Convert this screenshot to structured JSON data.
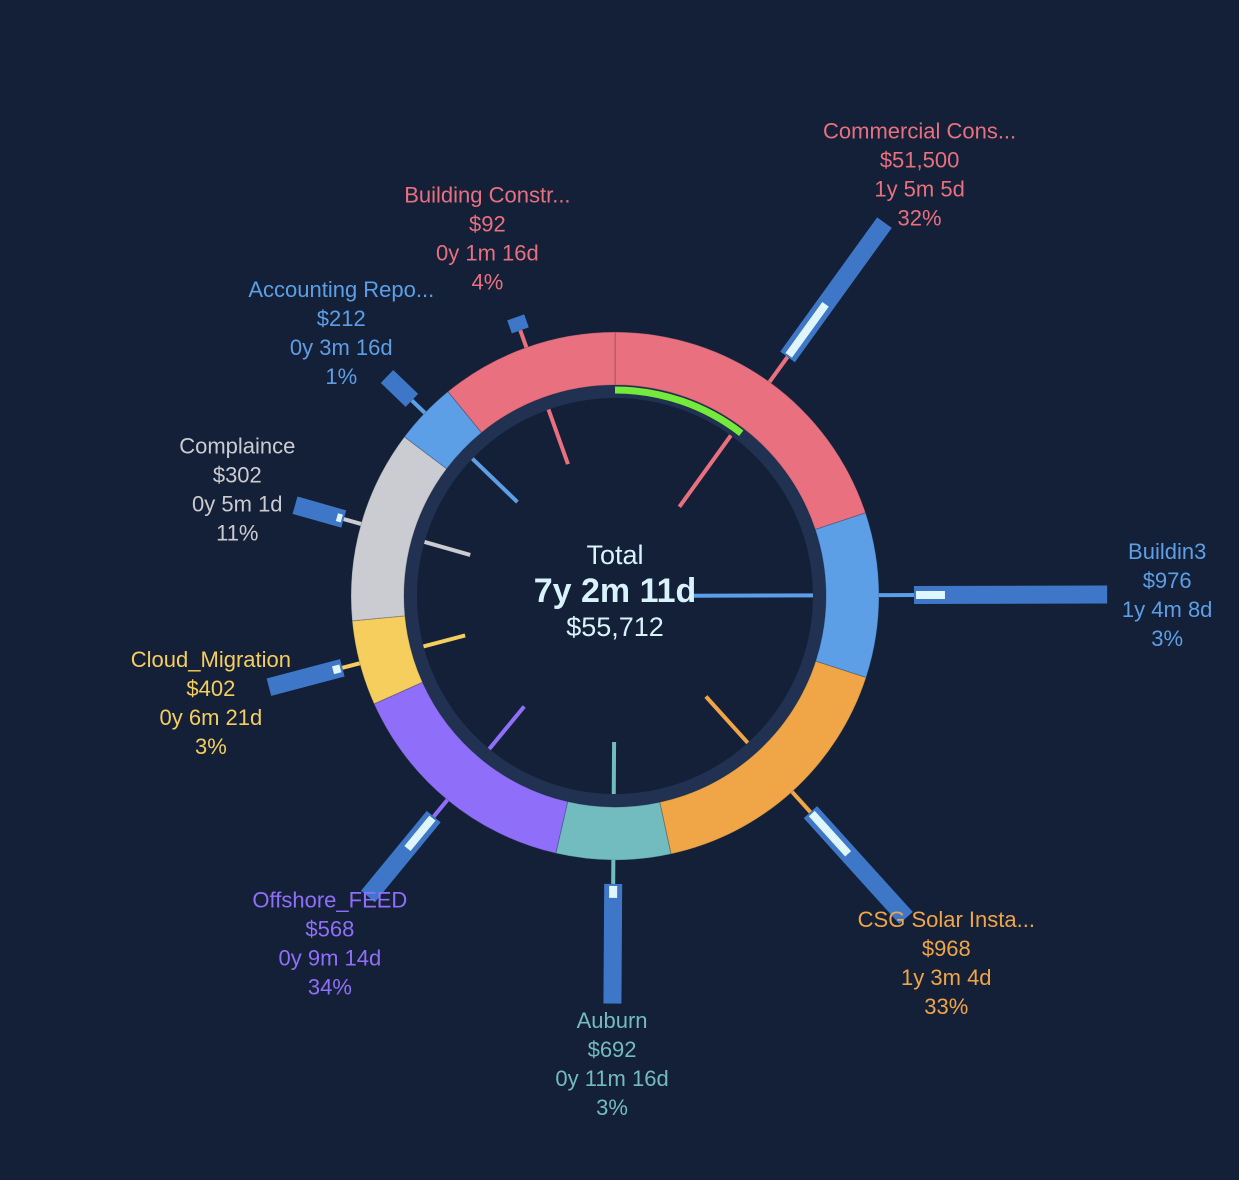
{
  "chart_data": {
    "type": "pie",
    "center": {
      "title": "Total",
      "duration": "7y 2m 11d",
      "cost": "$55,712"
    },
    "slices": [
      {
        "name": "Commercial Cons...",
        "cost": "$51,500",
        "duration": "1y 5m 5d",
        "percent": "32%",
        "share": 0.199,
        "outer_bar": 0.72,
        "outer_marker": 0.38,
        "inner_bar": 0.62,
        "color": "#e8707f"
      },
      {
        "name": "Buildin3",
        "cost": "$976",
        "duration": "1y 4m 8d",
        "percent": "3%",
        "share": 0.101,
        "outer_bar": 0.84,
        "outer_marker": 0.15,
        "inner_bar": 0.85,
        "color": "#5c9fe6"
      },
      {
        "name": "CSG Solar Insta...",
        "cost": "$968",
        "duration": "1y 3m 4d",
        "percent": "33%",
        "share": 0.166,
        "outer_bar": 0.62,
        "outer_marker": 0.38,
        "inner_bar": 0.45,
        "color": "#f0a546"
      },
      {
        "name": "Auburn",
        "cost": "$692",
        "duration": "0y 11m 16d",
        "percent": "3%",
        "share": 0.07,
        "outer_bar": 0.52,
        "outer_marker": 0.1,
        "inner_bar": 0.38,
        "color": "#72bcc0"
      },
      {
        "name": "Offshore_FEED",
        "cost": "$568",
        "duration": "0y 9m 14d",
        "percent": "34%",
        "share": 0.147,
        "outer_bar": 0.45,
        "outer_marker": 0.38,
        "inner_bar": 0.4,
        "color": "#8f6ffa"
      },
      {
        "name": "Cloud_Migration",
        "cost": "$402",
        "duration": "0y 6m 21d",
        "percent": "3%",
        "share": 0.052,
        "outer_bar": 0.33,
        "outer_marker": 0.1,
        "inner_bar": 0.32,
        "color": "#f5ce5e"
      },
      {
        "name": "Complaince",
        "cost": "$302",
        "duration": "0y 5m 1d",
        "percent": "11%",
        "share": 0.118,
        "outer_bar": 0.22,
        "outer_marker": 0.1,
        "inner_bar": 0.35,
        "color": "#cbccd1"
      },
      {
        "name": "Accounting Repo...",
        "cost": "$212",
        "duration": "0y 3m 16d",
        "percent": "1%",
        "share": 0.038,
        "outer_bar": 0.15,
        "outer_marker": 0,
        "inner_bar": 0.45,
        "color": "#5c9fe6"
      },
      {
        "name": "Building Constr...",
        "cost": "$92",
        "duration": "0y 1m 16d",
        "percent": "4%",
        "share": 0.109,
        "outer_bar": 0.06,
        "outer_marker": 0,
        "inner_bar": 0.42,
        "color": "#e8707f"
      }
    ],
    "progress_arc": {
      "start_share": 0.0,
      "end_share": 0.105,
      "color": "#74ea3a"
    },
    "colors": {
      "background": "#142037",
      "inner_track": "#203152",
      "outer_bar": "#3f77c8",
      "outer_marker": "#dff6ff"
    }
  }
}
